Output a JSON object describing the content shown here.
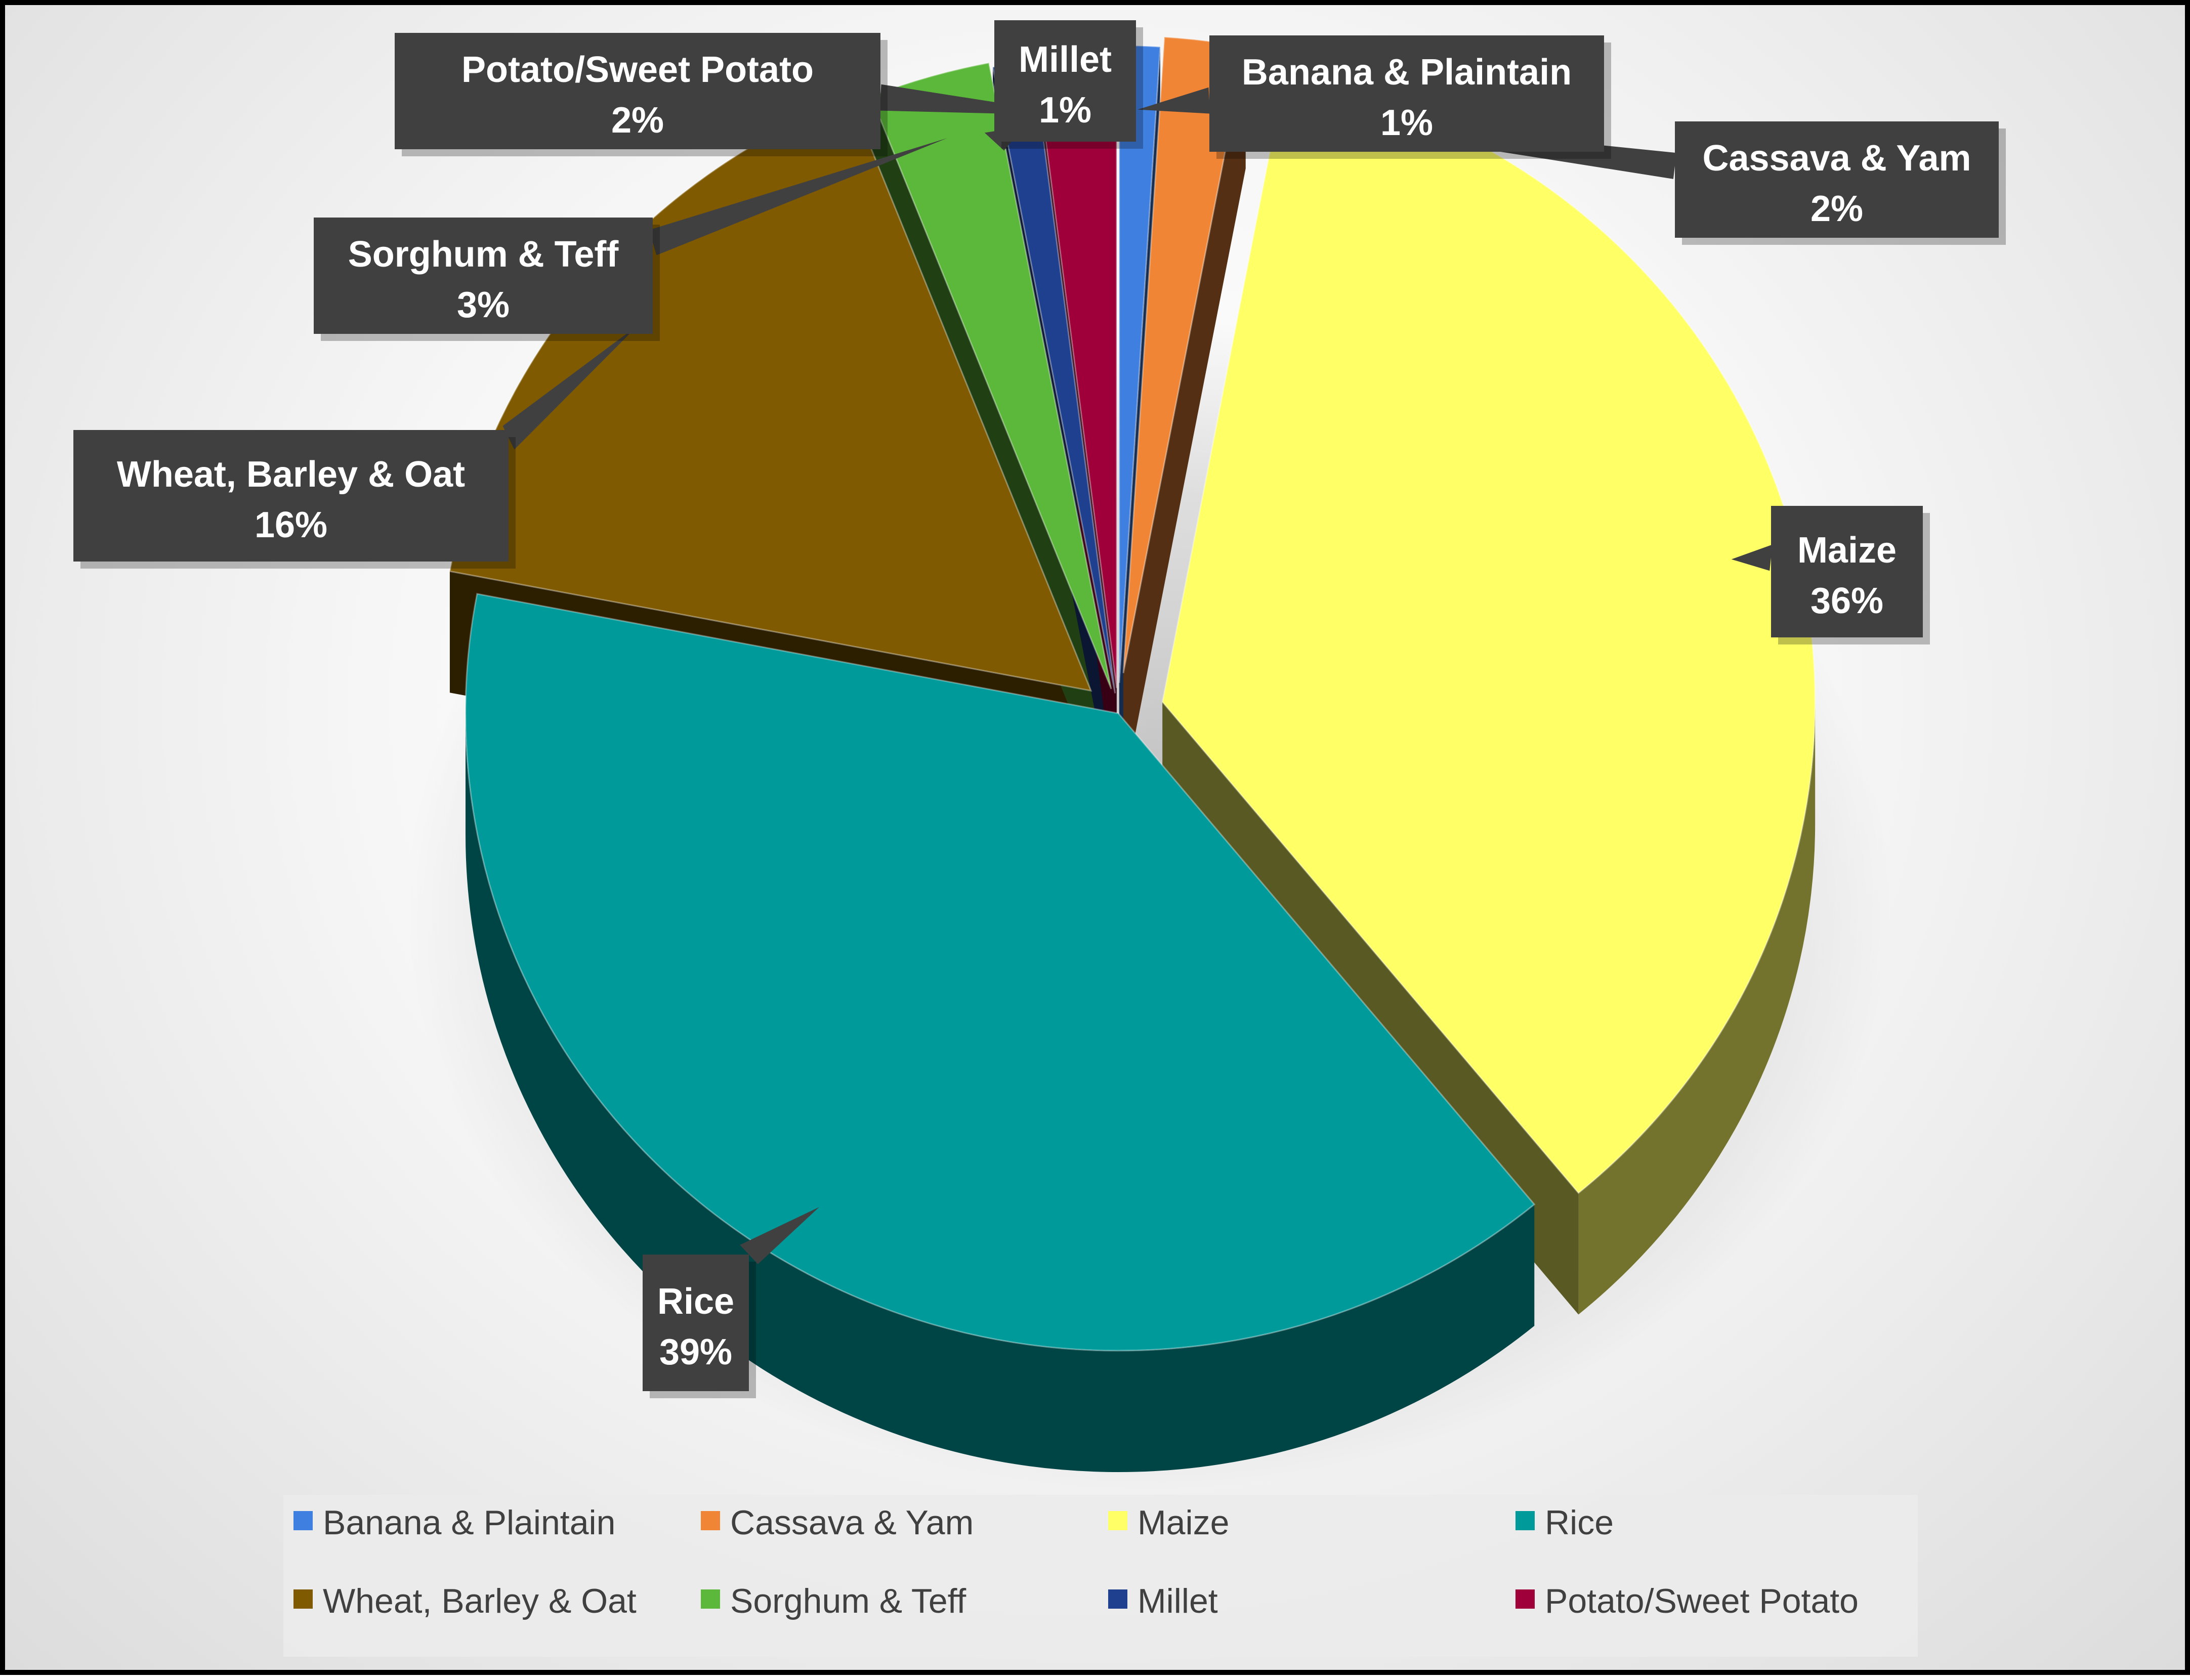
{
  "chart_data": {
    "type": "pie",
    "style": "3d-pie",
    "legend_position": "bottom",
    "slices": [
      {
        "label": "Banana & Plaintain",
        "value": 1,
        "value_label": "1%",
        "color": "#3F7FE0"
      },
      {
        "label": "Cassava & Yam",
        "value": 2,
        "value_label": "2%",
        "color": "#F08535"
      },
      {
        "label": "Maize",
        "value": 36,
        "value_label": "36%",
        "color": "#FFFF66"
      },
      {
        "label": "Rice",
        "value": 39,
        "value_label": "39%",
        "color": "#009A9A"
      },
      {
        "label": "Wheat, Barley & Oat",
        "value": 16,
        "value_label": "16%",
        "color": "#7F5A00"
      },
      {
        "label": "Sorghum & Teff",
        "value": 3,
        "value_label": "3%",
        "color": "#5CB83A"
      },
      {
        "label": "Millet",
        "value": 1,
        "value_label": "1%",
        "color": "#1F3F8F"
      },
      {
        "label": "Potato/Sweet Potato",
        "value": 2,
        "value_label": "2%",
        "color": "#A0003A"
      }
    ]
  }
}
